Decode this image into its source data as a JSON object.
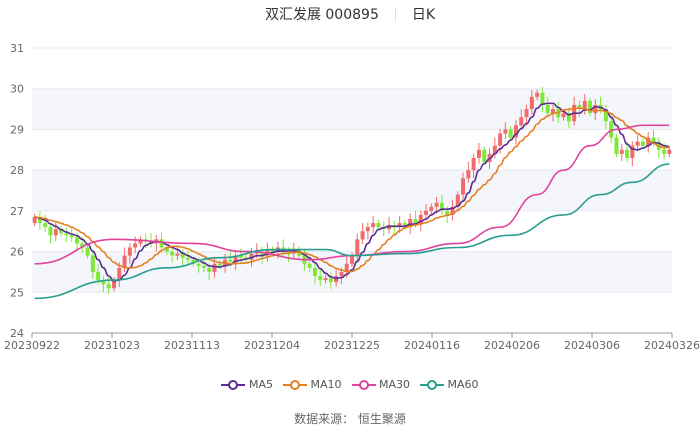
{
  "chart_data": {
    "type": "candlestick",
    "title": "双汇发展 000895",
    "period": "日K",
    "ylim": [
      24,
      31
    ],
    "yticks": [
      24,
      25,
      26,
      27,
      28,
      29,
      30,
      31
    ],
    "xticks": [
      {
        "label": "20230922",
        "day": 0
      },
      {
        "label": "20231023",
        "day": 15
      },
      {
        "label": "20231113",
        "day": 30
      },
      {
        "label": "20231204",
        "day": 45
      },
      {
        "label": "20231225",
        "day": 60
      },
      {
        "label": "20240116",
        "day": 75
      },
      {
        "label": "20240206",
        "day": 90
      },
      {
        "label": "20240306",
        "day": 105
      },
      {
        "label": "20240326",
        "day": 120
      }
    ],
    "first_open": 26.7,
    "closes": [
      26.85,
      26.7,
      26.6,
      26.4,
      26.55,
      26.45,
      26.4,
      26.35,
      26.2,
      26.1,
      25.9,
      25.5,
      25.3,
      25.2,
      25.1,
      25.3,
      25.6,
      25.9,
      26.1,
      26.2,
      26.3,
      26.25,
      26.2,
      26.3,
      26.1,
      26.0,
      25.9,
      25.95,
      25.85,
      25.8,
      25.7,
      25.65,
      25.6,
      25.5,
      25.7,
      25.65,
      25.8,
      25.75,
      25.9,
      25.85,
      25.8,
      25.95,
      26.0,
      25.9,
      26.05,
      26.0,
      26.1,
      26.0,
      25.95,
      26.05,
      25.9,
      25.7,
      25.6,
      25.4,
      25.3,
      25.35,
      25.25,
      25.4,
      25.5,
      25.7,
      25.9,
      26.3,
      26.5,
      26.6,
      26.7,
      26.6,
      26.55,
      26.65,
      26.6,
      26.7,
      26.6,
      26.8,
      26.7,
      26.9,
      27.0,
      27.1,
      27.2,
      27.0,
      26.9,
      27.1,
      27.4,
      27.8,
      28.0,
      28.3,
      28.5,
      28.2,
      28.4,
      28.6,
      28.9,
      29.0,
      28.8,
      29.1,
      29.3,
      29.5,
      29.8,
      29.9,
      29.6,
      29.4,
      29.5,
      29.3,
      29.4,
      29.2,
      29.6,
      29.5,
      29.7,
      29.4,
      29.6,
      29.5,
      29.2,
      28.8,
      28.4,
      28.5,
      28.3,
      28.6,
      28.7,
      28.6,
      28.8,
      28.7,
      28.5,
      28.4,
      28.5
    ],
    "series": [
      {
        "name": "MA5",
        "color": "#5b2c91",
        "period": 5
      },
      {
        "name": "MA10",
        "color": "#e67e22",
        "period": 10
      },
      {
        "name": "MA30",
        "color": "#e0449c",
        "points": [
          [
            0,
            25.7
          ],
          [
            15,
            26.3
          ],
          [
            30,
            26.2
          ],
          [
            40,
            26.0
          ],
          [
            52,
            25.8
          ],
          [
            60,
            25.9
          ],
          [
            70,
            26.0
          ],
          [
            80,
            26.2
          ],
          [
            88,
            26.6
          ],
          [
            95,
            27.4
          ],
          [
            100,
            28.0
          ],
          [
            105,
            28.6
          ],
          [
            110,
            29.0
          ],
          [
            115,
            29.1
          ],
          [
            120,
            29.1
          ]
        ]
      },
      {
        "name": "MA60",
        "color": "#2a9d8f",
        "points": [
          [
            0,
            24.85
          ],
          [
            15,
            25.3
          ],
          [
            25,
            25.6
          ],
          [
            35,
            25.85
          ],
          [
            45,
            26.05
          ],
          [
            55,
            26.05
          ],
          [
            60,
            25.9
          ],
          [
            70,
            25.95
          ],
          [
            80,
            26.1
          ],
          [
            90,
            26.4
          ],
          [
            100,
            26.9
          ],
          [
            107,
            27.4
          ],
          [
            113,
            27.7
          ],
          [
            120,
            28.15
          ]
        ]
      }
    ],
    "up_color": "#f26b6b",
    "down_color": "#7ee83a"
  },
  "source": "数据来源： 恒生聚源"
}
